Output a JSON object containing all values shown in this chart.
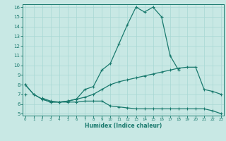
{
  "xlabel": "Humidex (Indice chaleur)",
  "x": [
    0,
    1,
    2,
    3,
    4,
    5,
    6,
    7,
    8,
    9,
    10,
    11,
    12,
    13,
    14,
    15,
    16,
    17,
    18,
    19,
    20,
    21,
    22,
    23
  ],
  "line2": [
    8.0,
    7.0,
    6.5,
    6.2,
    6.2,
    6.3,
    6.5,
    7.5,
    7.8,
    9.5,
    10.2,
    12.2,
    14.2,
    16.0,
    15.5,
    16.0,
    15.0,
    11.0,
    9.5,
    null,
    null,
    null,
    null,
    null
  ],
  "line3": [
    7.0,
    null,
    6.6,
    6.3,
    6.2,
    6.3,
    6.5,
    6.7,
    7.0,
    7.5,
    8.0,
    8.3,
    8.5,
    8.7,
    8.9,
    9.1,
    9.3,
    9.5,
    9.7,
    9.8,
    9.8,
    7.5,
    7.3,
    7.0
  ],
  "line4": [
    8.0,
    7.0,
    6.5,
    6.2,
    6.2,
    6.2,
    6.2,
    6.3,
    6.3,
    6.3,
    5.8,
    5.7,
    5.6,
    5.5,
    5.5,
    5.5,
    5.5,
    5.5,
    5.5,
    5.5,
    5.5,
    5.5,
    5.3,
    5.0
  ],
  "line_color": "#1a7a6e",
  "bg_color": "#c8e8e4",
  "grid_color": "#a8d8d4",
  "ylim": [
    5,
    16
  ],
  "yticks": [
    5,
    6,
    7,
    8,
    9,
    10,
    11,
    12,
    13,
    14,
    15,
    16
  ],
  "xlim": [
    0,
    23
  ],
  "xticks": [
    0,
    1,
    2,
    3,
    4,
    5,
    6,
    7,
    8,
    9,
    10,
    11,
    12,
    13,
    14,
    15,
    16,
    17,
    18,
    19,
    20,
    21,
    22,
    23
  ],
  "marker": "+"
}
